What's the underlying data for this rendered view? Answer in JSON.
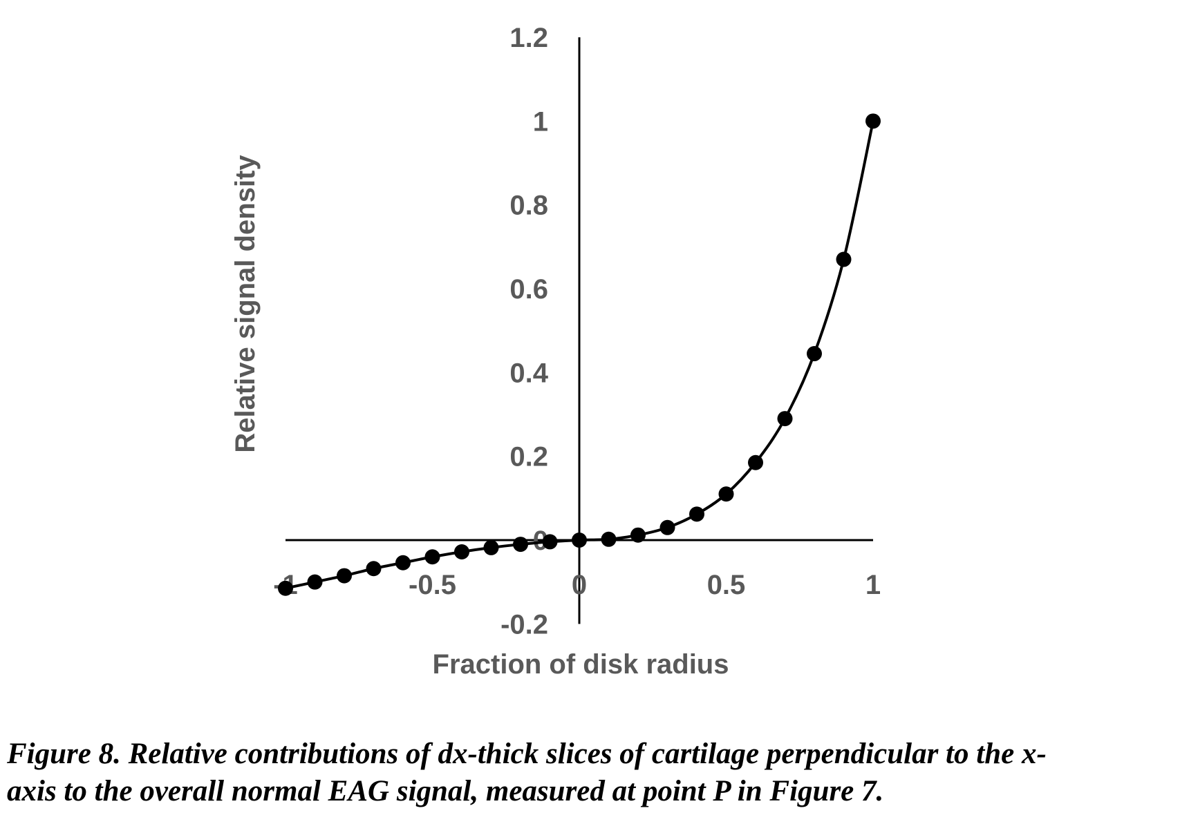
{
  "chart_data": {
    "type": "scatter",
    "xlabel": "Fraction of disk radius",
    "ylabel": "Relative signal density",
    "xlim": [
      -1,
      1
    ],
    "ylim": [
      -0.2,
      1.2
    ],
    "x_ticks": [
      "-1",
      "-0.5",
      "0",
      "0.5",
      "1"
    ],
    "y_ticks": [
      "1.2",
      "1",
      "0.8",
      "0.6",
      "0.4",
      "0.2",
      "0",
      "-0.2"
    ],
    "grid": false,
    "legend": "none",
    "marker": "filled-circle",
    "line": "smooth",
    "color": "#000000",
    "series": [
      {
        "x": [
          -1,
          -0.9,
          -0.8,
          -0.7,
          -0.6,
          -0.5,
          -0.4,
          -0.3,
          -0.2,
          -0.1,
          0,
          0.1,
          0.2,
          0.3,
          0.4,
          0.5,
          0.6,
          0.7,
          0.8,
          0.9,
          1
        ],
        "y": [
          -0.115,
          -0.1,
          -0.085,
          -0.068,
          -0.054,
          -0.04,
          -0.028,
          -0.018,
          -0.01,
          -0.004,
          0,
          0.002,
          0.012,
          0.03,
          0.062,
          0.11,
          0.185,
          0.29,
          0.445,
          0.67,
          1.0
        ]
      }
    ]
  },
  "caption": {
    "line1": "Figure 8.  Relative contributions of dx-thick slices of cartilage perpendicular to the x-",
    "line2": "axis to the overall normal EAG signal, measured at point  P  in Figure 7."
  }
}
